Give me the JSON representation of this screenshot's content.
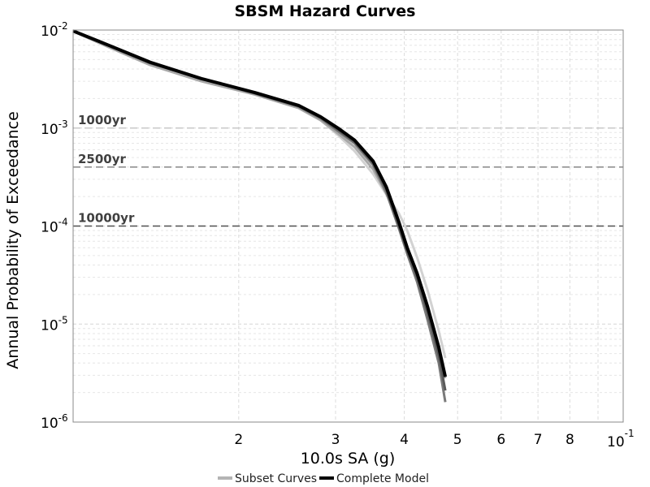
{
  "chart_data": {
    "type": "line",
    "title": "SBSM Hazard Curves",
    "xlabel": "10.0s SA (g)",
    "ylabel": "Annual Probability of Exceedance",
    "x_scale": "log",
    "y_scale": "log",
    "xlim": [
      0.01,
      0.1
    ],
    "ylim": [
      1e-06,
      0.01
    ],
    "grid": true,
    "legend_position": "bottom-center",
    "x_major_ticks": [
      {
        "value": 0.1,
        "base": "10",
        "exp": "-1"
      }
    ],
    "x_minor_tick_labels": [
      {
        "value": 0.02,
        "label": "2"
      },
      {
        "value": 0.03,
        "label": "3"
      },
      {
        "value": 0.04,
        "label": "4"
      },
      {
        "value": 0.05,
        "label": "5"
      },
      {
        "value": 0.06,
        "label": "6"
      },
      {
        "value": 0.07,
        "label": "7"
      },
      {
        "value": 0.08,
        "label": "8"
      }
    ],
    "y_major_ticks": [
      {
        "value": 0.01,
        "base": "10",
        "exp": "-2"
      },
      {
        "value": 0.001,
        "base": "10",
        "exp": "-3"
      },
      {
        "value": 0.0001,
        "base": "10",
        "exp": "-4"
      },
      {
        "value": 1e-05,
        "base": "10",
        "exp": "-5"
      },
      {
        "value": 1e-06,
        "base": "10",
        "exp": "-6"
      }
    ],
    "reference_lines": [
      {
        "label": "1000yr",
        "y": 0.001,
        "color": "#c8c8c8"
      },
      {
        "label": "2500yr",
        "y": 0.0004,
        "color": "#909090"
      },
      {
        "label": "10000yr",
        "y": 0.0001,
        "color": "#505050"
      }
    ],
    "legend": [
      {
        "label": "Subset Curves",
        "color": "#b4b4b4"
      },
      {
        "label": "Complete Model",
        "color": "#000000"
      }
    ],
    "series": [
      {
        "color": "#d2d2d2",
        "x": [
          0.01,
          0.0116,
          0.0138,
          0.0171,
          0.0214,
          0.0257,
          0.0282,
          0.0303,
          0.0325,
          0.0351,
          0.0371,
          0.0391,
          0.0405,
          0.0422,
          0.0441,
          0.0462,
          0.0475
        ],
        "y": [
          0.0097,
          0.0068,
          0.0045,
          0.0031,
          0.0022,
          0.0016,
          0.0012,
          0.00085,
          0.00058,
          0.00034,
          0.00021,
          0.000135,
          9e-05,
          4.8e-05,
          2.2e-05,
          8.5e-06,
          4.5e-06
        ]
      },
      {
        "color": "#a8a8a8",
        "x": [
          0.01,
          0.0116,
          0.0138,
          0.0171,
          0.0214,
          0.0257,
          0.0282,
          0.0303,
          0.0325,
          0.0351,
          0.0371,
          0.0391,
          0.0405,
          0.0422,
          0.0441,
          0.0462,
          0.0475
        ],
        "y": [
          0.0097,
          0.0067,
          0.0044,
          0.003,
          0.0022,
          0.0016,
          0.0012,
          0.00088,
          0.00064,
          0.00038,
          0.000215,
          0.000105,
          5.8e-05,
          3.2e-05,
          1.5e-05,
          5.5e-06,
          2.8e-06
        ]
      },
      {
        "color": "#7a7a7a",
        "x": [
          0.01,
          0.0116,
          0.0138,
          0.0171,
          0.0214,
          0.0257,
          0.0282,
          0.0303,
          0.0325,
          0.0351,
          0.0371,
          0.0391,
          0.0405,
          0.0422,
          0.0441,
          0.0462,
          0.0475
        ],
        "y": [
          0.0098,
          0.0069,
          0.0046,
          0.0032,
          0.00225,
          0.00165,
          0.00125,
          0.00093,
          0.0007,
          0.00042,
          0.00022,
          9.5e-05,
          5.2e-05,
          2.7e-05,
          1.1e-05,
          4e-06,
          1.6e-06
        ]
      },
      {
        "color": "#5a5a5a",
        "x": [
          0.01,
          0.0116,
          0.0138,
          0.0171,
          0.0214,
          0.0257,
          0.0282,
          0.0303,
          0.0325,
          0.0351,
          0.0371,
          0.0391,
          0.0405,
          0.0422,
          0.0441,
          0.0462,
          0.0475
        ],
        "y": [
          0.0098,
          0.007,
          0.0046,
          0.0032,
          0.00228,
          0.00168,
          0.00128,
          0.00096,
          0.00072,
          0.00044,
          0.000235,
          0.0001,
          5.5e-05,
          3e-05,
          1.3e-05,
          4.8e-06,
          2.1e-06
        ]
      },
      {
        "color": "#000000",
        "x": [
          0.01,
          0.0116,
          0.0138,
          0.0171,
          0.0214,
          0.0257,
          0.0282,
          0.0303,
          0.0325,
          0.0351,
          0.0371,
          0.0391,
          0.0405,
          0.0422,
          0.0441,
          0.0462,
          0.0475
        ],
        "y": [
          0.0098,
          0.007,
          0.0047,
          0.0032,
          0.0023,
          0.0017,
          0.0013,
          0.001,
          0.00075,
          0.00046,
          0.00025,
          0.00011,
          6e-05,
          3.3e-05,
          1.5e-05,
          5.8e-06,
          2.9e-06
        ]
      }
    ]
  }
}
